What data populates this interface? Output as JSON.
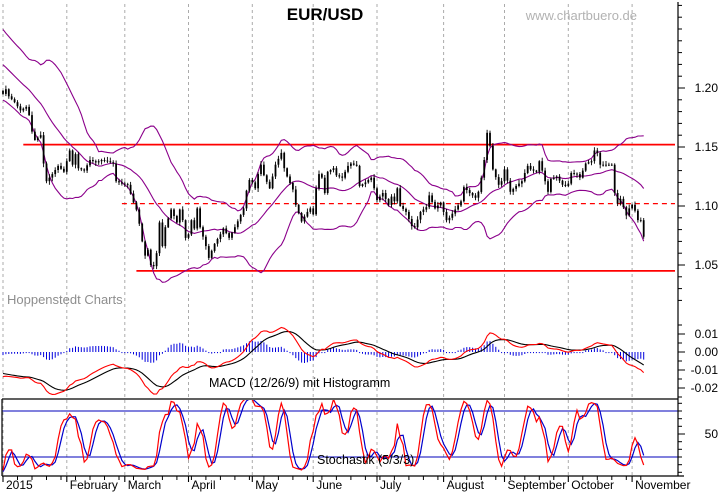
{
  "header": {
    "title": "EUR/USD",
    "watermark": "www.chartbuero.de",
    "brand": "Hoppenstedt Charts"
  },
  "chart_data": {
    "type": "candlestick",
    "title": "EUR/USD",
    "period_shown": "January 2015 - November 2015",
    "x_axis": {
      "unit": "trading-day",
      "days_total": 222,
      "minor_tick_every_days": 5,
      "months": [
        [
          "2015",
          0
        ],
        [
          "February",
          22
        ],
        [
          "March",
          42
        ],
        [
          "April",
          64
        ],
        [
          "May",
          86
        ],
        [
          "June",
          107
        ],
        [
          "July",
          129
        ],
        [
          "August",
          152
        ],
        [
          "September",
          173
        ],
        [
          "October",
          195
        ],
        [
          "November",
          217
        ]
      ]
    },
    "price_panel": {
      "ylim": [
        1.01,
        1.27
      ],
      "ticks": [
        [
          1.2,
          "1.20"
        ],
        [
          1.15,
          "1.15"
        ],
        [
          1.1,
          "1.10"
        ],
        [
          1.05,
          "1.05"
        ]
      ],
      "hlines": [
        {
          "price": 1.152,
          "style": "solid",
          "from_day": 7
        },
        {
          "price": 1.102,
          "style": "dashed",
          "from_day": 41
        },
        {
          "price": 1.045,
          "style": "solid",
          "from_day": 46
        }
      ],
      "bollinger": {
        "period": 20,
        "stddev": 2
      },
      "close_anchors": [
        [
          0,
          1.195
        ],
        [
          1,
          1.199
        ],
        [
          2,
          1.193
        ],
        [
          4,
          1.188
        ],
        [
          6,
          1.181
        ],
        [
          8,
          1.184
        ],
        [
          9,
          1.177
        ],
        [
          10,
          1.163
        ],
        [
          11,
          1.156
        ],
        [
          13,
          1.16
        ],
        [
          14,
          1.136
        ],
        [
          15,
          1.121
        ],
        [
          17,
          1.127
        ],
        [
          19,
          1.134
        ],
        [
          21,
          1.129
        ],
        [
          23,
          1.147
        ],
        [
          24,
          1.135
        ],
        [
          25,
          1.144
        ],
        [
          26,
          1.132
        ],
        [
          28,
          1.13
        ],
        [
          30,
          1.139
        ],
        [
          32,
          1.137
        ],
        [
          34,
          1.139
        ],
        [
          36,
          1.138
        ],
        [
          38,
          1.136
        ],
        [
          39,
          1.121
        ],
        [
          41,
          1.119
        ],
        [
          43,
          1.118
        ],
        [
          45,
          1.103
        ],
        [
          46,
          1.097
        ],
        [
          47,
          1.085
        ],
        [
          48,
          1.07
        ],
        [
          49,
          1.058
        ],
        [
          50,
          1.063
        ],
        [
          51,
          1.05
        ],
        [
          52,
          1.049
        ],
        [
          53,
          1.06
        ],
        [
          54,
          1.086
        ],
        [
          55,
          1.066
        ],
        [
          56,
          1.082
        ],
        [
          58,
          1.097
        ],
        [
          60,
          1.086
        ],
        [
          61,
          1.097
        ],
        [
          62,
          1.088
        ],
        [
          63,
          1.073
        ],
        [
          64,
          1.076
        ],
        [
          65,
          1.088
        ],
        [
          66,
          1.081
        ],
        [
          67,
          1.098
        ],
        [
          68,
          1.082
        ],
        [
          70,
          1.066
        ],
        [
          71,
          1.056
        ],
        [
          73,
          1.068
        ],
        [
          75,
          1.076
        ],
        [
          76,
          1.081
        ],
        [
          78,
          1.073
        ],
        [
          80,
          1.082
        ],
        [
          81,
          1.087
        ],
        [
          83,
          1.098
        ],
        [
          84,
          1.113
        ],
        [
          85,
          1.122
        ],
        [
          86,
          1.12
        ],
        [
          87,
          1.115
        ],
        [
          88,
          1.127
        ],
        [
          89,
          1.135
        ],
        [
          90,
          1.126
        ],
        [
          92,
          1.115
        ],
        [
          94,
          1.135
        ],
        [
          95,
          1.14
        ],
        [
          96,
          1.145
        ],
        [
          97,
          1.132
        ],
        [
          98,
          1.125
        ],
        [
          100,
          1.114
        ],
        [
          101,
          1.101
        ],
        [
          103,
          1.087
        ],
        [
          105,
          1.095
        ],
        [
          106,
          1.098
        ],
        [
          107,
          1.093
        ],
        [
          108,
          1.115
        ],
        [
          109,
          1.127
        ],
        [
          110,
          1.124
        ],
        [
          111,
          1.111
        ],
        [
          112,
          1.129
        ],
        [
          114,
          1.132
        ],
        [
          115,
          1.126
        ],
        [
          117,
          1.124
        ],
        [
          119,
          1.134
        ],
        [
          120,
          1.136
        ],
        [
          122,
          1.134
        ],
        [
          123,
          1.117
        ],
        [
          125,
          1.12
        ],
        [
          127,
          1.124
        ],
        [
          128,
          1.115
        ],
        [
          129,
          1.105
        ],
        [
          131,
          1.111
        ],
        [
          133,
          1.101
        ],
        [
          134,
          1.108
        ],
        [
          135,
          1.104
        ],
        [
          136,
          1.115
        ],
        [
          137,
          1.1
        ],
        [
          139,
          1.095
        ],
        [
          141,
          1.083
        ],
        [
          142,
          1.082
        ],
        [
          144,
          1.095
        ],
        [
          146,
          1.099
        ],
        [
          147,
          1.109
        ],
        [
          149,
          1.098
        ],
        [
          151,
          1.103
        ],
        [
          152,
          1.095
        ],
        [
          153,
          1.088
        ],
        [
          154,
          1.09
        ],
        [
          156,
          1.097
        ],
        [
          158,
          1.104
        ],
        [
          159,
          1.116
        ],
        [
          161,
          1.111
        ],
        [
          163,
          1.107
        ],
        [
          164,
          1.112
        ],
        [
          165,
          1.124
        ],
        [
          166,
          1.139
        ],
        [
          167,
          1.162
        ],
        [
          168,
          1.151
        ],
        [
          169,
          1.131
        ],
        [
          171,
          1.118
        ],
        [
          172,
          1.121
        ],
        [
          173,
          1.131
        ],
        [
          175,
          1.112
        ],
        [
          177,
          1.117
        ],
        [
          179,
          1.121
        ],
        [
          180,
          1.128
        ],
        [
          181,
          1.134
        ],
        [
          182,
          1.131
        ],
        [
          184,
          1.129
        ],
        [
          185,
          1.138
        ],
        [
          186,
          1.13
        ],
        [
          188,
          1.112
        ],
        [
          189,
          1.123
        ],
        [
          191,
          1.125
        ],
        [
          193,
          1.118
        ],
        [
          194,
          1.117
        ],
        [
          195,
          1.119
        ],
        [
          196,
          1.128
        ],
        [
          198,
          1.127
        ],
        [
          199,
          1.124
        ],
        [
          201,
          1.136
        ],
        [
          203,
          1.138
        ],
        [
          204,
          1.147
        ],
        [
          205,
          1.145
        ],
        [
          206,
          1.135
        ],
        [
          208,
          1.135
        ],
        [
          210,
          1.135
        ],
        [
          211,
          1.111
        ],
        [
          212,
          1.102
        ],
        [
          213,
          1.106
        ],
        [
          215,
          1.092
        ],
        [
          216,
          1.098
        ],
        [
          217,
          1.101
        ],
        [
          218,
          1.096
        ],
        [
          219,
          1.088
        ],
        [
          220,
          1.088
        ],
        [
          221,
          1.074
        ]
      ]
    },
    "macd_panel": {
      "label": "MACD (12/26/9) mit Histogramm",
      "fast": 12,
      "slow": 26,
      "signal": 9,
      "ticks": [
        [
          0.01,
          "0.01"
        ],
        [
          0,
          "0.00"
        ],
        [
          -0.01,
          "-0.01"
        ],
        [
          -0.02,
          "-0.02"
        ]
      ]
    },
    "stoch_panel": {
      "label": "Stochastik (5/3/3)",
      "k": 5,
      "k_smooth": 3,
      "d": 3,
      "levels": [
        80,
        20
      ],
      "ticks": [
        [
          50,
          "50"
        ]
      ]
    }
  },
  "colors": {
    "candle": "#000000",
    "bollinger": "#8b008b",
    "line_red": "#ff0000",
    "line_black": "#000000",
    "histogram_blue": "#0000dd",
    "stoch_blue": "#0000cc",
    "level_blue": "#0000bb",
    "grid": "#ababab",
    "axis": "#000000",
    "brand_gray": "#8e8e8e",
    "watermark_gray": "#b2b2b2"
  }
}
